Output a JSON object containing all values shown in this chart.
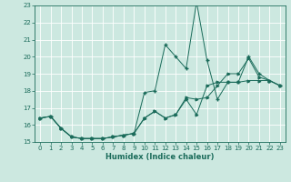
{
  "xlabel": "Humidex (Indice chaleur)",
  "xlim": [
    -0.5,
    23.5
  ],
  "ylim": [
    15,
    23
  ],
  "yticks": [
    15,
    16,
    17,
    18,
    19,
    20,
    21,
    22,
    23
  ],
  "xticks": [
    0,
    1,
    2,
    3,
    4,
    5,
    6,
    7,
    8,
    9,
    10,
    11,
    12,
    13,
    14,
    15,
    16,
    17,
    18,
    19,
    20,
    21,
    22,
    23
  ],
  "bg_color": "#cce8e0",
  "grid_color": "#ffffff",
  "line_color": "#1a6b5a",
  "line1_x": [
    0,
    1,
    2,
    3,
    4,
    5,
    6,
    7,
    8,
    9,
    10,
    11,
    12,
    13,
    14,
    15,
    16,
    17,
    18,
    19,
    20,
    21,
    22,
    23
  ],
  "line1_y": [
    16.4,
    16.5,
    15.8,
    15.3,
    15.2,
    15.2,
    15.2,
    15.3,
    15.4,
    15.5,
    16.4,
    16.8,
    16.4,
    16.6,
    17.6,
    17.5,
    17.6,
    18.3,
    19.0,
    19.0,
    19.9,
    18.8,
    18.6,
    18.3
  ],
  "line2_x": [
    0,
    1,
    2,
    3,
    4,
    5,
    6,
    7,
    8,
    9,
    10,
    11,
    12,
    13,
    14,
    15,
    16,
    17,
    18,
    19,
    20,
    21,
    22,
    23
  ],
  "line2_y": [
    16.4,
    16.5,
    15.8,
    15.3,
    15.2,
    15.2,
    15.2,
    15.3,
    15.4,
    15.5,
    17.9,
    18.0,
    20.7,
    20.0,
    19.3,
    23.2,
    19.8,
    17.5,
    18.5,
    18.5,
    20.0,
    19.0,
    18.6,
    18.3
  ],
  "line3_x": [
    0,
    1,
    2,
    3,
    4,
    5,
    6,
    7,
    8,
    9,
    10,
    11,
    12,
    13,
    14,
    15,
    16,
    17,
    18,
    19,
    20,
    21,
    22,
    23
  ],
  "line3_y": [
    16.4,
    16.5,
    15.8,
    15.3,
    15.2,
    15.2,
    15.2,
    15.3,
    15.4,
    15.5,
    16.4,
    16.8,
    16.4,
    16.6,
    17.5,
    16.6,
    18.3,
    18.5,
    18.5,
    18.5,
    18.6,
    18.6,
    18.6,
    18.3
  ]
}
